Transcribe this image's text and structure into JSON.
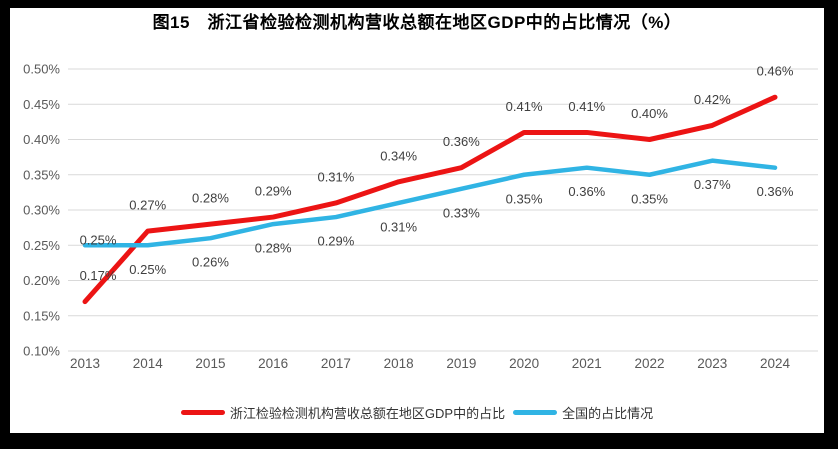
{
  "figure": {
    "title": "图15　浙江省检验检测机构营收总额在地区GDP中的占比情况（%）"
  },
  "chart_data": {
    "type": "line",
    "x": [
      "2013",
      "2014",
      "2015",
      "2016",
      "2017",
      "2018",
      "2019",
      "2020",
      "2021",
      "2022",
      "2023",
      "2024"
    ],
    "series": [
      {
        "name": "浙江检验检测机构营收总额在地区GDP中的占比",
        "color": "#ec1414",
        "values": [
          0.17,
          0.27,
          0.28,
          0.29,
          0.31,
          0.34,
          0.36,
          0.41,
          0.41,
          0.4,
          0.42,
          0.46
        ],
        "labels": [
          "0.17%",
          "0.27%",
          "0.28%",
          "0.29%",
          "0.31%",
          "0.34%",
          "0.36%",
          "0.41%",
          "0.41%",
          "0.40%",
          "0.42%",
          "0.46%"
        ],
        "label_side": "above"
      },
      {
        "name": "全国的占比情况",
        "color": "#30b4e4",
        "values": [
          0.25,
          0.25,
          0.26,
          0.28,
          0.29,
          0.31,
          0.33,
          0.35,
          0.36,
          0.35,
          0.37,
          0.36
        ],
        "labels": [
          "0.25%",
          "0.25%",
          "0.26%",
          "0.28%",
          "0.29%",
          "0.31%",
          "0.33%",
          "0.35%",
          "0.36%",
          "0.35%",
          "0.37%",
          "0.36%"
        ],
        "label_side": "below"
      }
    ],
    "title": "图15　浙江省检验检测机构营收总额在地区GDP中的占比情况（%）",
    "xlabel": "",
    "ylabel": "",
    "ylim": [
      0.1,
      0.5
    ],
    "ytick_step": 0.05,
    "yticks": [
      "0.50%",
      "0.45%",
      "0.40%",
      "0.35%",
      "0.30%",
      "0.25%",
      "0.20%",
      "0.15%",
      "0.10%"
    ],
    "grid": "horizontal",
    "legend_position": "bottom",
    "colors": {
      "grid": "#d9d9d9",
      "axis_text": "#595959",
      "data_label": "#3f3f3f",
      "background": "#ffffff"
    }
  }
}
